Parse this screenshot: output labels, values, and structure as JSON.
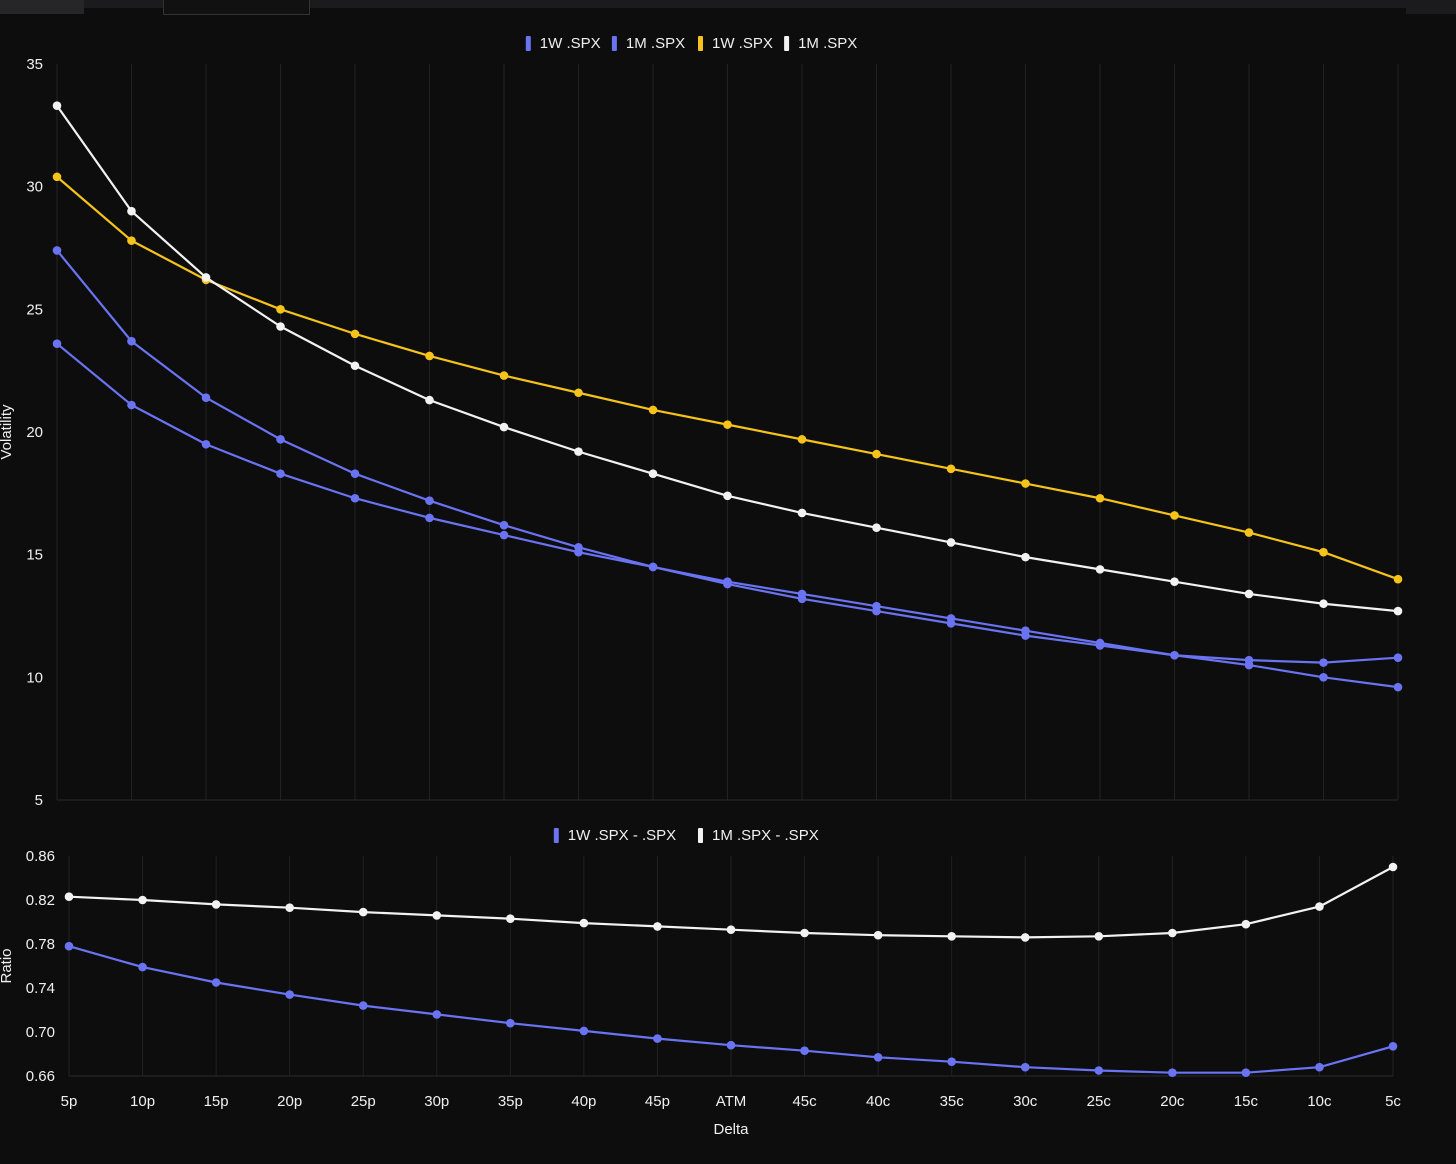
{
  "chart_data": [
    {
      "type": "line",
      "ylabel": "Volatility",
      "ylim": [
        5,
        35
      ],
      "yticks": [
        "35",
        "30",
        "25",
        "20",
        "15",
        "10",
        "5"
      ],
      "categories": [
        "5p",
        "10p",
        "15p",
        "20p",
        "25p",
        "30p",
        "35p",
        "40p",
        "45p",
        "ATM",
        "45c",
        "40c",
        "35c",
        "30c",
        "25c",
        "20c",
        "15c",
        "10c",
        "5c"
      ],
      "grid": "vertical",
      "legend": "top-center",
      "series": [
        {
          "name": "1W .SPX",
          "color": "#6a74f2",
          "values": [
            23.6,
            21.1,
            19.5,
            18.3,
            17.3,
            16.5,
            15.8,
            15.1,
            14.5,
            13.8,
            13.2,
            12.7,
            12.2,
            11.7,
            11.3,
            10.9,
            10.7,
            10.6,
            10.8
          ]
        },
        {
          "name": "1M .SPX",
          "color": "#6a74f2",
          "values": [
            27.4,
            23.7,
            21.4,
            19.7,
            18.3,
            17.2,
            16.2,
            15.3,
            14.5,
            13.9,
            13.4,
            12.9,
            12.4,
            11.9,
            11.4,
            10.9,
            10.5,
            10.0,
            9.6
          ]
        },
        {
          "name": "1W .SPX",
          "color": "#f5c31a",
          "values": [
            30.4,
            27.8,
            26.2,
            25.0,
            24.0,
            23.1,
            22.3,
            21.6,
            20.9,
            20.3,
            19.7,
            19.1,
            18.5,
            17.9,
            17.3,
            16.6,
            15.9,
            15.1,
            14.0
          ]
        },
        {
          "name": "1M .SPX",
          "color": "#f2f2f2",
          "values": [
            33.3,
            29.0,
            26.3,
            24.3,
            22.7,
            21.3,
            20.2,
            19.2,
            18.3,
            17.4,
            16.7,
            16.1,
            15.5,
            14.9,
            14.4,
            13.9,
            13.4,
            13.0,
            12.7
          ]
        }
      ]
    },
    {
      "type": "line",
      "xlabel": "Delta",
      "ylabel": "Ratio",
      "ylim": [
        0.66,
        0.86
      ],
      "yticks": [
        "0.86",
        "0.82",
        "0.78",
        "0.74",
        "0.70",
        "0.66"
      ],
      "categories": [
        "5p",
        "10p",
        "15p",
        "20p",
        "25p",
        "30p",
        "35p",
        "40p",
        "45p",
        "ATM",
        "45c",
        "40c",
        "35c",
        "30c",
        "25c",
        "20c",
        "15c",
        "10c",
        "5c"
      ],
      "grid": "vertical",
      "legend": "top-center",
      "series": [
        {
          "name": "1W .SPX - .SPX",
          "color": "#6a74f2",
          "values": [
            0.778,
            0.759,
            0.745,
            0.734,
            0.724,
            0.716,
            0.708,
            0.701,
            0.694,
            0.688,
            0.683,
            0.677,
            0.673,
            0.668,
            0.665,
            0.663,
            0.663,
            0.668,
            0.687
          ]
        },
        {
          "name": "1M .SPX - .SPX",
          "color": "#f2f2f2",
          "values": [
            0.823,
            0.82,
            0.816,
            0.813,
            0.809,
            0.806,
            0.803,
            0.799,
            0.796,
            0.793,
            0.79,
            0.788,
            0.787,
            0.786,
            0.787,
            0.79,
            0.798,
            0.814,
            0.85
          ]
        }
      ]
    }
  ]
}
